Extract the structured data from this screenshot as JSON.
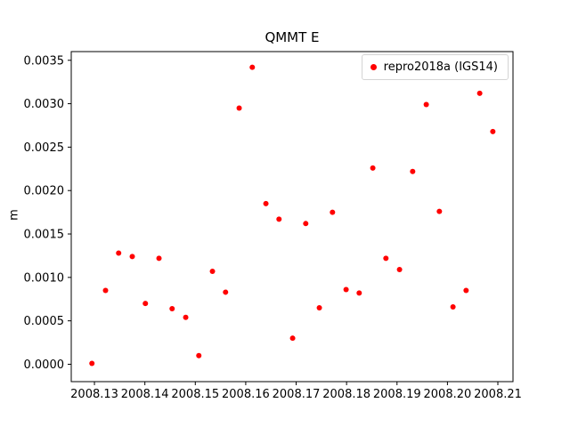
{
  "figure": {
    "background": "#ffffff"
  },
  "chart_data": {
    "type": "scatter",
    "title": "QMMT E",
    "xlabel": "",
    "ylabel": "m",
    "grid": false,
    "xlim": [
      2008.1254,
      2008.213
    ],
    "ylim": [
      -0.0002,
      0.0036
    ],
    "xticks": [
      2008.13,
      2008.14,
      2008.15,
      2008.16,
      2008.17,
      2008.18,
      2008.19,
      2008.2,
      2008.21
    ],
    "xtick_labels": [
      "2008.13",
      "2008.14",
      "2008.15",
      "2008.16",
      "2008.17",
      "2008.18",
      "2008.19",
      "2008.20",
      "2008.21"
    ],
    "yticks": [
      0.0,
      0.0005,
      0.001,
      0.0015,
      0.002,
      0.0025,
      0.003,
      0.0035
    ],
    "ytick_labels": [
      "0.0000",
      "0.0005",
      "0.0010",
      "0.0015",
      "0.0020",
      "0.0025",
      "0.0030",
      "0.0035"
    ],
    "legend": {
      "position": "upper right",
      "entries": [
        {
          "label": "repro2018a (IGS14)",
          "marker": "dot",
          "color": "#ff0000"
        }
      ]
    },
    "series": [
      {
        "name": "repro2018a (IGS14)",
        "color": "#ff0000",
        "marker_size": 3,
        "x": [
          2008.1295,
          2008.1322,
          2008.1348,
          2008.1375,
          2008.1401,
          2008.1428,
          2008.1454,
          2008.1481,
          2008.1507,
          2008.1534,
          2008.156,
          2008.1587,
          2008.1613,
          2008.164,
          2008.1666,
          2008.1693,
          2008.1719,
          2008.1746,
          2008.1772,
          2008.1799,
          2008.1825,
          2008.1852,
          2008.1878,
          2008.1905,
          2008.1931,
          2008.1958,
          2008.1984,
          2008.2011,
          2008.2037,
          2008.2064,
          2008.209
        ],
        "y": [
          1e-05,
          0.00085,
          0.00128,
          0.00124,
          0.0007,
          0.00122,
          0.00064,
          0.00054,
          0.0001,
          0.00107,
          0.00083,
          0.00295,
          0.00342,
          0.00185,
          0.00167,
          0.0003,
          0.00162,
          0.00065,
          0.00175,
          0.00086,
          0.00082,
          0.00226,
          0.00122,
          0.00109,
          0.00222,
          0.00299,
          0.00176,
          0.00066,
          0.00085,
          0.00312,
          0.00268
        ]
      }
    ]
  }
}
